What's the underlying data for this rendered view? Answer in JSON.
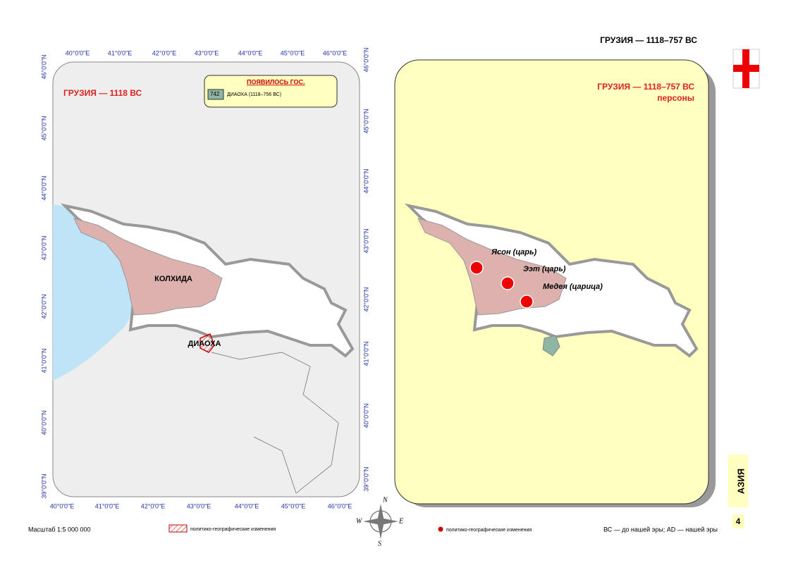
{
  "header": {
    "title": "ГРУЗИЯ — 1118–757 ВС"
  },
  "left_map": {
    "title": "ГРУЗИЯ — 1118 ВС",
    "legend": {
      "title": "ПОЯВИЛОСЬ ГОС.",
      "code": "742",
      "label": "ДИАОХА (1118–756 ВС)"
    },
    "regions": [
      "КОЛХИДА",
      "ДИАОХА"
    ],
    "longitudes": [
      "40°0'0\"E",
      "41°0'0\"E",
      "42°0'0\"E",
      "43°0'0\"E",
      "44°0'0\"E",
      "45°0'0\"E",
      "46°0'0\"E"
    ],
    "latitudes": [
      "46°0'0\"N",
      "45°0'0\"N",
      "44°0'0\"N",
      "43°0'0\"N",
      "42°0'0\"N",
      "41°0'0\"N",
      "40°0'0\"N",
      "39°0'0\"N"
    ]
  },
  "right_map": {
    "title": "ГРУЗИЯ — 1118–757 ВС",
    "subtitle": "персоны",
    "persons": [
      "Ясон (царь)",
      "Ээт (царь)",
      "Медея (царица)"
    ]
  },
  "footer": {
    "scale": "Масштаб 1:5 000 000",
    "legend_hatch": "политико-географические изменения",
    "legend_dot": "политико-географические изменения",
    "note": "ВС — до нашей эры; AD — нашей эры"
  },
  "compass": [
    "N",
    "W",
    "E",
    "S"
  ],
  "side_tab": {
    "label": "АЗИЯ",
    "page": "4"
  }
}
